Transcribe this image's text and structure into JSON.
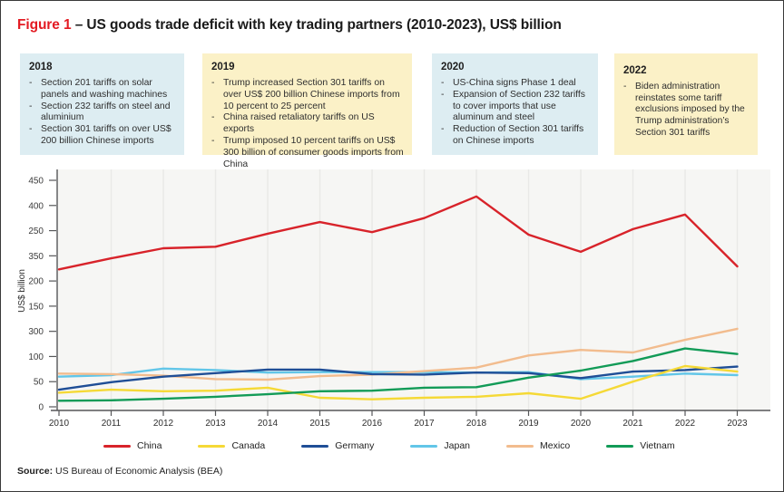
{
  "page": {
    "title": {
      "figure_label": "Figure 1",
      "rest": " – US goods trade deficit with key trading partners (2010-2023), US$ billion"
    },
    "accent_red": "#e31b23",
    "source": {
      "label": "Source:",
      "text": " US Bureau of Economic Analysis (BEA)"
    }
  },
  "box_colors": {
    "blue": "#ddedf2",
    "yellow": "#fbf1c7"
  },
  "annotations": [
    {
      "year": "2018",
      "style": "blue",
      "bullets": [
        "Section 201 tariffs on solar panels and washing machines",
        "Section 232 tariffs on steel and aluminium",
        "Section 301 tariffs on over US$ 200 billion Chinese imports"
      ]
    },
    {
      "year": "2019",
      "style": "yellow",
      "bullets": [
        "Trump increased Section 301 tariffs on over US$ 200 billion Chinese imports from 10 percent to 25 percent",
        "China raised retaliatory tariffs on US exports",
        "Trump imposed 10 percent tariffs on US$ 300 billion of consumer goods imports from China"
      ]
    },
    {
      "year": "2020",
      "style": "blue",
      "bullets": [
        "US-China signs Phase 1 deal",
        "Expansion of Section 232 tariffs to cover imports that use aluminum and steel",
        "Reduction of Section 301 tariffs on Chinese imports"
      ]
    },
    {
      "year": "2022",
      "style": "yellow",
      "bullets": [
        "Biden administration reinstates some tariff exclusions imposed by the Trump administration’s Section 301 tariffs"
      ]
    }
  ],
  "chart_data": {
    "type": "line",
    "title": "US goods trade deficit with key trading partners (2010-2023)",
    "xlabel": "",
    "ylabel": "US$ billion",
    "x": [
      2010,
      2011,
      2012,
      2013,
      2014,
      2015,
      2016,
      2017,
      2018,
      2019,
      2020,
      2021,
      2022,
      2023
    ],
    "y_value_range": [
      0,
      450
    ],
    "y_tick_labels_top_to_bottom": [
      "450",
      "400",
      "250",
      "350",
      "200",
      "150",
      "300",
      "100",
      "50",
      "0"
    ],
    "grid": "vertical-only",
    "legend_position": "bottom",
    "plot_bg": "#f6f6f4",
    "grid_color": "#e9e9e7",
    "axis_color": "#565759",
    "tick_text_color": "#3d3d3d",
    "series": [
      {
        "name": "China",
        "color": "#d8232a",
        "values": [
          273,
          295,
          315,
          318,
          344,
          367,
          347,
          375,
          418,
          342,
          308,
          353,
          382,
          279
        ]
      },
      {
        "name": "Canada",
        "color": "#f5d936",
        "values": [
          28,
          34,
          31,
          32,
          38,
          18,
          15,
          18,
          20,
          27,
          16,
          50,
          81,
          70
        ]
      },
      {
        "name": "Germany",
        "color": "#1f4e96",
        "values": [
          34,
          49,
          60,
          67,
          74,
          74,
          65,
          64,
          68,
          67,
          57,
          70,
          73,
          80
        ]
      },
      {
        "name": "Japan",
        "color": "#62c6e8",
        "values": [
          60,
          63,
          76,
          73,
          68,
          69,
          69,
          69,
          68,
          69,
          55,
          60,
          66,
          63
        ]
      },
      {
        "name": "Mexico",
        "color": "#f2bc8e",
        "values": [
          66,
          65,
          62,
          55,
          54,
          61,
          64,
          71,
          78,
          102,
          113,
          108,
          133,
          155
        ]
      },
      {
        "name": "Vietnam",
        "color": "#129b57",
        "values": [
          12,
          13,
          16,
          20,
          25,
          31,
          32,
          38,
          39,
          58,
          72,
          91,
          116,
          105
        ]
      }
    ],
    "series_draw_order": [
      "Japan",
      "Mexico",
      "Germany",
      "Canada",
      "Vietnam",
      "China"
    ]
  }
}
